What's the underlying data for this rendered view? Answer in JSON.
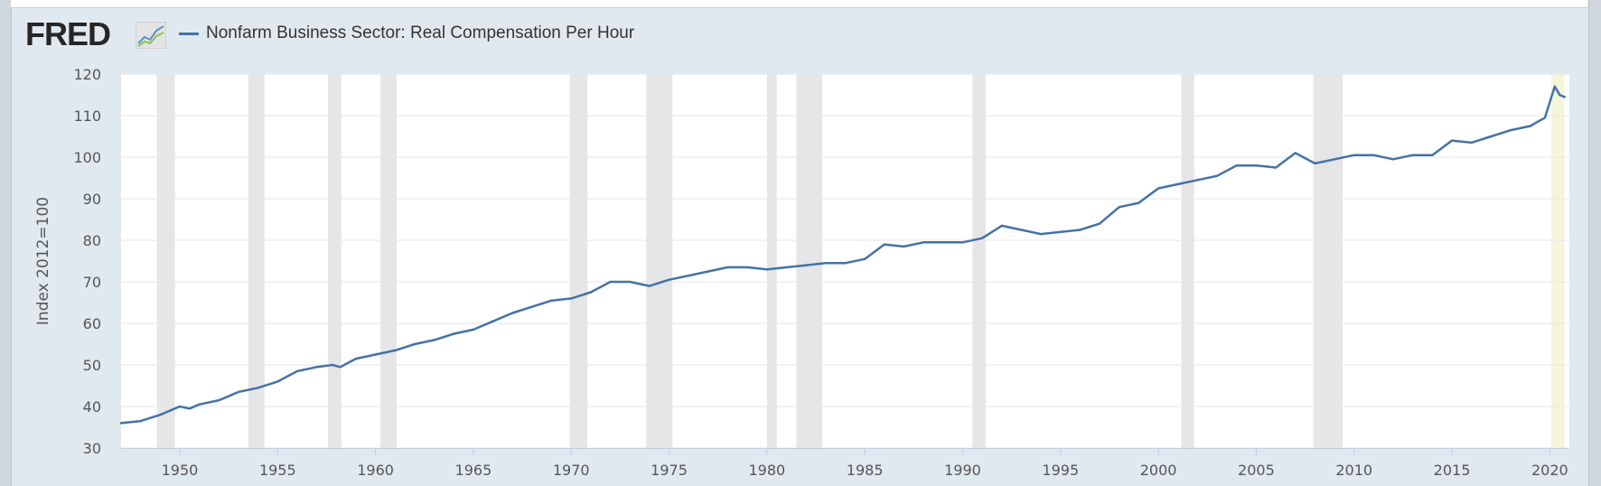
{
  "logo": {
    "text": "FRED",
    "icon": "fred-chart-icon"
  },
  "chart_data": {
    "type": "line",
    "title": "",
    "xlabel": "",
    "ylabel": "Index 2012=100",
    "xlim": [
      1947.0,
      2021.0
    ],
    "ylim": [
      30,
      120
    ],
    "yticks": [
      30,
      40,
      50,
      60,
      70,
      80,
      90,
      100,
      110,
      120
    ],
    "xticks": [
      1950,
      1955,
      1960,
      1965,
      1970,
      1975,
      1980,
      1985,
      1990,
      1995,
      2000,
      2005,
      2010,
      2015,
      2020
    ],
    "grid": true,
    "legend_placement": "top-left",
    "recessions": [
      [
        1948.83,
        1949.75
      ],
      [
        1953.5,
        1954.33
      ],
      [
        1957.58,
        1958.25
      ],
      [
        1960.25,
        1961.08
      ],
      [
        1969.92,
        1970.83
      ],
      [
        1973.83,
        1975.17
      ],
      [
        1980.0,
        1980.5
      ],
      [
        1981.5,
        1982.83
      ],
      [
        1990.5,
        1991.17
      ],
      [
        2001.17,
        2001.83
      ],
      [
        2007.92,
        2009.42
      ],
      [
        2020.08,
        2020.75
      ]
    ],
    "recession_color": "#e6e6e6",
    "highlight_recession_color": "#f5f5dc",
    "series": [
      {
        "name": "Nonfarm Business Sector: Real Compensation Per Hour",
        "color": "#4572a7",
        "x": [
          1947.0,
          1948.0,
          1949.0,
          1950.0,
          1950.5,
          1951.0,
          1952.0,
          1953.0,
          1954.0,
          1955.0,
          1956.0,
          1957.0,
          1957.8,
          1958.2,
          1959.0,
          1960.0,
          1961.0,
          1962.0,
          1963.0,
          1964.0,
          1965.0,
          1966.0,
          1967.0,
          1968.0,
          1969.0,
          1970.0,
          1971.0,
          1972.0,
          1973.0,
          1974.0,
          1975.0,
          1976.0,
          1977.0,
          1978.0,
          1979.0,
          1980.0,
          1981.0,
          1982.0,
          1983.0,
          1984.0,
          1985.0,
          1986.0,
          1987.0,
          1988.0,
          1989.0,
          1990.0,
          1991.0,
          1992.0,
          1993.0,
          1994.0,
          1995.0,
          1996.0,
          1997.0,
          1998.0,
          1999.0,
          2000.0,
          2001.0,
          2002.0,
          2003.0,
          2004.0,
          2005.0,
          2006.0,
          2007.0,
          2008.0,
          2009.0,
          2010.0,
          2011.0,
          2012.0,
          2013.0,
          2014.0,
          2015.0,
          2016.0,
          2017.0,
          2018.0,
          2019.0,
          2019.75,
          2020.25,
          2020.5,
          2020.75
        ],
        "y": [
          36,
          36.5,
          38,
          40,
          39.5,
          40.5,
          41.5,
          43.5,
          44.5,
          46,
          48.5,
          49.5,
          50,
          49.5,
          51.5,
          52.5,
          53.5,
          55,
          56,
          57.5,
          58.5,
          60.5,
          62.5,
          64,
          65.5,
          66,
          67.5,
          70,
          70,
          69,
          70.5,
          71.5,
          72.5,
          73.5,
          73.5,
          73,
          73.5,
          74,
          74.5,
          74.5,
          75.5,
          79,
          78.5,
          79.5,
          79.5,
          79.5,
          80.5,
          83.5,
          82.5,
          81.5,
          82,
          82.5,
          84,
          88,
          89,
          92.5,
          93.5,
          94.5,
          95.5,
          98,
          98,
          97.5,
          101,
          98.5,
          99.5,
          100.5,
          100.5,
          99.5,
          100.5,
          100.5,
          104,
          103.5,
          105,
          106.5,
          107.5,
          109.5,
          117,
          115,
          114.5
        ]
      }
    ]
  }
}
